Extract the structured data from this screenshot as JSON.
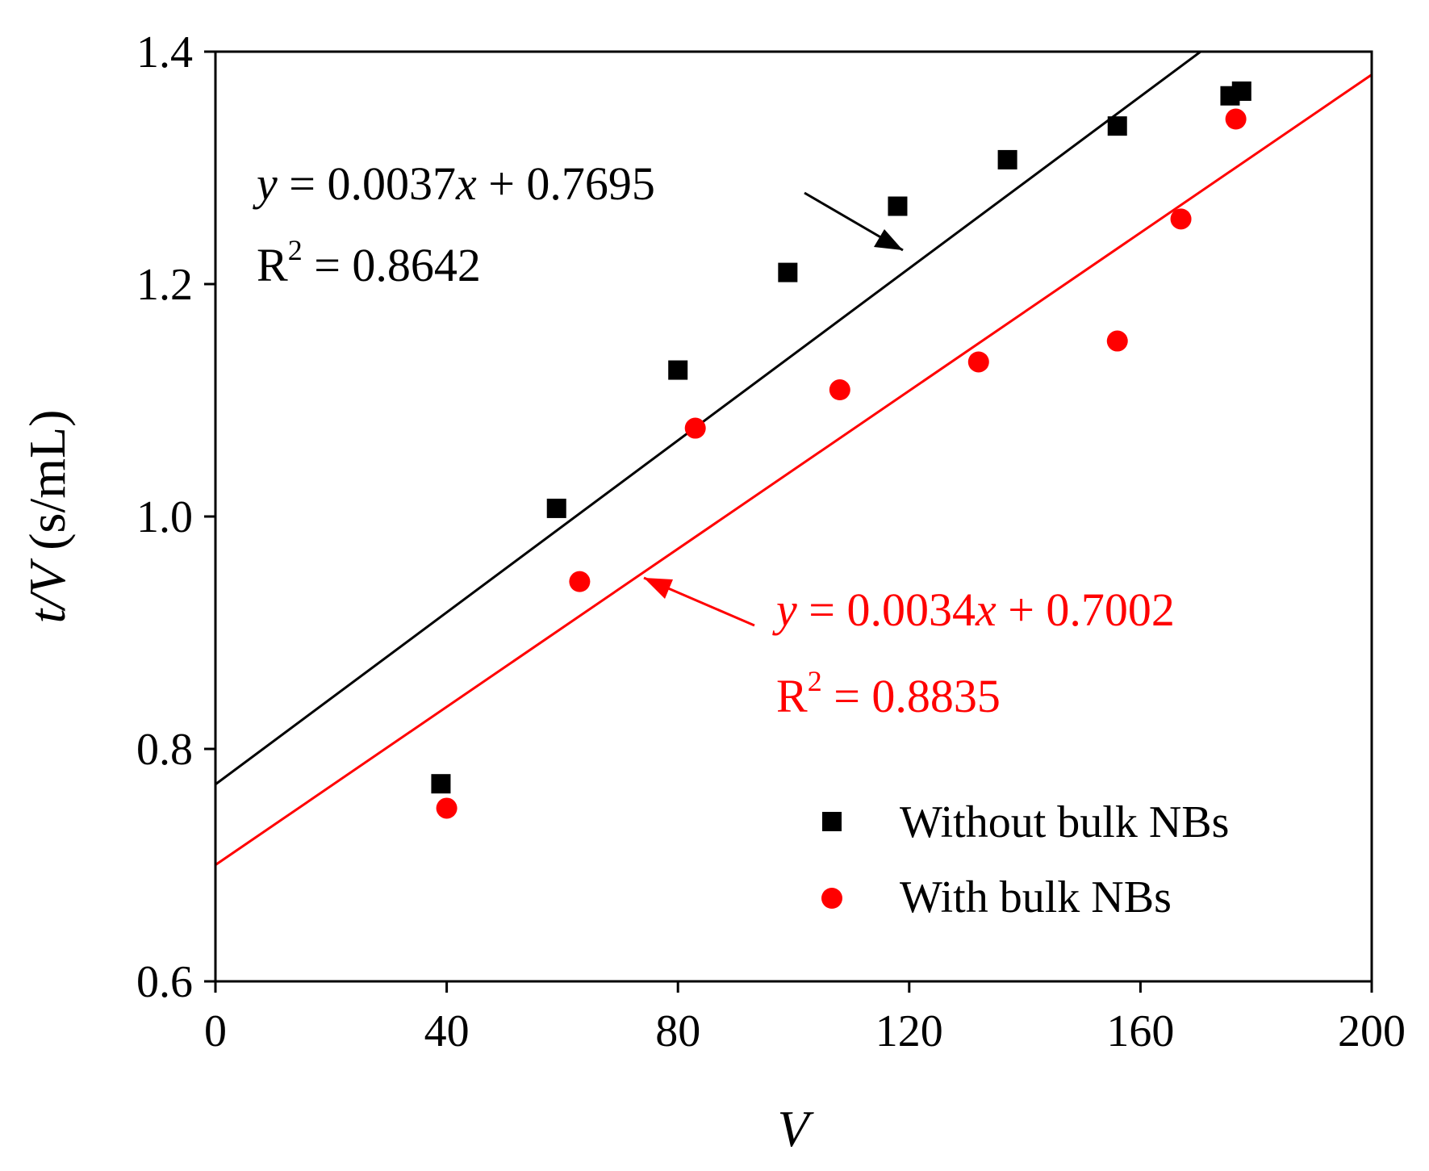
{
  "chart_data": {
    "type": "scatter",
    "title": "",
    "xlabel": "V",
    "ylabel_italic": "t/V",
    "ylabel_unit": " (s/mL)",
    "xlim": [
      0,
      200
    ],
    "ylim": [
      0.6,
      1.4
    ],
    "x_ticks": [
      0,
      40,
      80,
      120,
      160,
      200
    ],
    "y_ticks": [
      0.6,
      0.8,
      1.0,
      1.2,
      1.4
    ],
    "x_tick_labels": [
      "0",
      "40",
      "80",
      "120",
      "160",
      "200"
    ],
    "y_tick_labels": [
      "0.6",
      "0.8",
      "1.0",
      "1.2",
      "1.4"
    ],
    "grid": false,
    "legend_position": "bottom-right",
    "series": [
      {
        "name": "Without bulk NBs",
        "marker": "square",
        "color": "#000000",
        "x": [
          39,
          59,
          80,
          99,
          118,
          137,
          156,
          175.5,
          177.5
        ],
        "y": [
          0.77,
          1.007,
          1.126,
          1.21,
          1.267,
          1.307,
          1.336,
          1.362,
          1.366
        ],
        "fit": {
          "slope": 0.0037,
          "intercept": 0.7695,
          "eq_var": "y",
          "eq_mid": " = 0.0037",
          "eq_x": "x",
          "eq_end": " + 0.7695",
          "r2_base": "R",
          "r2_sup": "2",
          "r2_value": " = 0.8642"
        }
      },
      {
        "name": "With bulk NBs",
        "marker": "circle",
        "color": "#ff0000",
        "x": [
          40,
          63,
          83,
          108,
          132,
          156,
          167,
          176.5
        ],
        "y": [
          0.749,
          0.944,
          1.076,
          1.109,
          1.133,
          1.151,
          1.256,
          1.342
        ],
        "fit": {
          "slope": 0.0034,
          "intercept": 0.7002,
          "eq_var": "y",
          "eq_mid": " = 0.0034",
          "eq_x": "x",
          "eq_end": " + 0.7002",
          "r2_base": "R",
          "r2_sup": "2",
          "r2_value": " = 0.8835"
        }
      }
    ]
  }
}
